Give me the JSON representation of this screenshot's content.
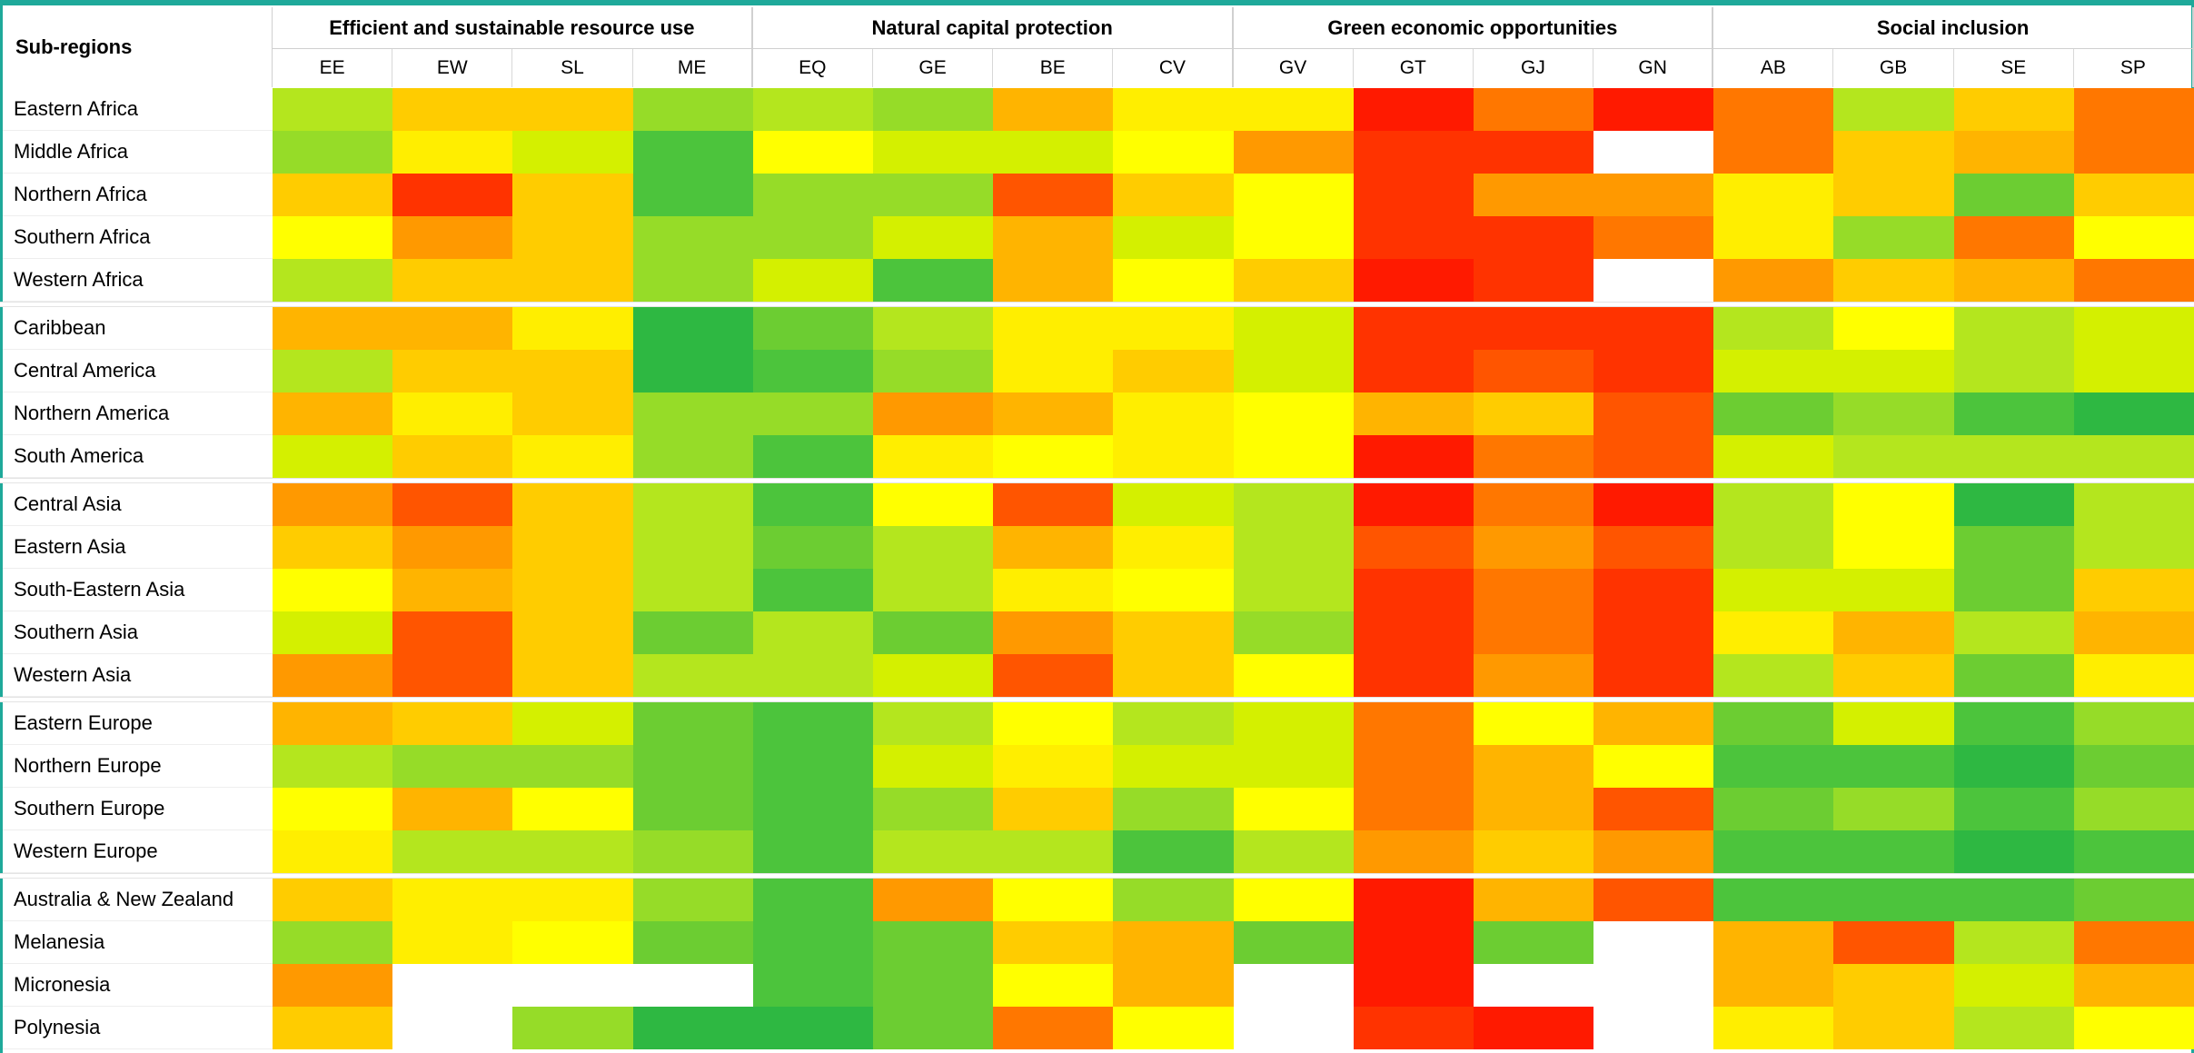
{
  "header": {
    "first": "Sub-regions",
    "groups": [
      {
        "label": "Efficient and sustainable resource use",
        "codes": [
          "EE",
          "EW",
          "SL",
          "ME"
        ]
      },
      {
        "label": "Natural capital protection",
        "codes": [
          "EQ",
          "GE",
          "BE",
          "CV"
        ]
      },
      {
        "label": "Green economic opportunities",
        "codes": [
          "GV",
          "GT",
          "GJ",
          "GN"
        ]
      },
      {
        "label": "Social inclusion",
        "codes": [
          "AB",
          "GB",
          "SE",
          "SP"
        ]
      }
    ]
  },
  "groups_rows": [
    5,
    4,
    5,
    4,
    4
  ],
  "rows": [
    {
      "label": "Eastern Africa",
      "colors": [
        "#b4e61e",
        "#ffcc00",
        "#ffcc00",
        "#96dc28",
        "#b4e61e",
        "#96dc28",
        "#ffb400",
        "#ffee00",
        "#ffee00",
        "#ff1a00",
        "#ff7700",
        "#ff1a00",
        "#ff7700",
        "#b4e61e",
        "#ffcc00",
        "#ff7700"
      ]
    },
    {
      "label": "Middle Africa",
      "colors": [
        "#96dc28",
        "#ffee00",
        "#d4f000",
        "#4cc43c",
        "#ffff00",
        "#d4f000",
        "#d4f000",
        "#ffff00",
        "#ff9900",
        "#ff3300",
        "#ff3300",
        "#ffffff",
        "#ff7700",
        "#ffcc00",
        "#ffb400",
        "#ff7700"
      ]
    },
    {
      "label": "Northern Africa",
      "colors": [
        "#ffcc00",
        "#ff3300",
        "#ffcc00",
        "#4cc43c",
        "#96dc28",
        "#96dc28",
        "#ff5500",
        "#ffcc00",
        "#ffff00",
        "#ff3300",
        "#ff9900",
        "#ff9900",
        "#ffee00",
        "#ffcc00",
        "#6ccd32",
        "#ffcc00"
      ]
    },
    {
      "label": "Southern Africa",
      "colors": [
        "#ffff00",
        "#ff9900",
        "#ffcc00",
        "#96dc28",
        "#96dc28",
        "#d4f000",
        "#ffb400",
        "#d4f000",
        "#ffff00",
        "#ff3300",
        "#ff3300",
        "#ff7700",
        "#ffee00",
        "#96dc28",
        "#ff7700",
        "#ffff00"
      ]
    },
    {
      "label": "Western Africa",
      "colors": [
        "#b4e61e",
        "#ffcc00",
        "#ffcc00",
        "#96dc28",
        "#d4f000",
        "#4cc43c",
        "#ffb400",
        "#ffff00",
        "#ffcc00",
        "#ff1a00",
        "#ff3300",
        "#ffffff",
        "#ff9900",
        "#ffcc00",
        "#ffb400",
        "#ff7700"
      ]
    },
    {
      "label": "Caribbean",
      "colors": [
        "#ffb400",
        "#ffb400",
        "#ffee00",
        "#2eb842",
        "#6ccd32",
        "#b4e61e",
        "#ffee00",
        "#ffee00",
        "#d4f000",
        "#ff3300",
        "#ff3300",
        "#ff3300",
        "#b4e61e",
        "#ffff00",
        "#b4e61e",
        "#d4f000"
      ]
    },
    {
      "label": "Central America",
      "colors": [
        "#b4e61e",
        "#ffcc00",
        "#ffcc00",
        "#2eb842",
        "#4cc43c",
        "#96dc28",
        "#ffee00",
        "#ffcc00",
        "#d4f000",
        "#ff3300",
        "#ff5500",
        "#ff3300",
        "#d4f000",
        "#d4f000",
        "#b4e61e",
        "#d4f000"
      ]
    },
    {
      "label": "Northern America",
      "colors": [
        "#ffb400",
        "#ffee00",
        "#ffcc00",
        "#96dc28",
        "#96dc28",
        "#ff9900",
        "#ffb400",
        "#ffee00",
        "#ffff00",
        "#ffb400",
        "#ffcc00",
        "#ff5500",
        "#6ccd32",
        "#96dc28",
        "#4cc43c",
        "#2eb842"
      ]
    },
    {
      "label": "South America",
      "colors": [
        "#d4f000",
        "#ffcc00",
        "#ffee00",
        "#96dc28",
        "#4cc43c",
        "#ffee00",
        "#ffff00",
        "#ffee00",
        "#ffff00",
        "#ff1a00",
        "#ff7700",
        "#ff5500",
        "#d4f000",
        "#b4e61e",
        "#b4e61e",
        "#b4e61e"
      ]
    },
    {
      "label": "Central Asia",
      "colors": [
        "#ff9900",
        "#ff5500",
        "#ffcc00",
        "#b4e61e",
        "#4cc43c",
        "#ffff00",
        "#ff5500",
        "#d4f000",
        "#b4e61e",
        "#ff1a00",
        "#ff7700",
        "#ff1a00",
        "#b4e61e",
        "#ffff00",
        "#2eb842",
        "#b4e61e"
      ]
    },
    {
      "label": "Eastern Asia",
      "colors": [
        "#ffcc00",
        "#ff9900",
        "#ffcc00",
        "#b4e61e",
        "#6ccd32",
        "#b4e61e",
        "#ffb400",
        "#ffee00",
        "#b4e61e",
        "#ff5500",
        "#ff9900",
        "#ff5500",
        "#b4e61e",
        "#ffff00",
        "#6ccd32",
        "#b4e61e"
      ]
    },
    {
      "label": "South-Eastern Asia",
      "colors": [
        "#ffff00",
        "#ffb400",
        "#ffcc00",
        "#b4e61e",
        "#4cc43c",
        "#b4e61e",
        "#ffee00",
        "#ffff00",
        "#b4e61e",
        "#ff3300",
        "#ff7700",
        "#ff3300",
        "#d4f000",
        "#d4f000",
        "#6ccd32",
        "#ffcc00"
      ]
    },
    {
      "label": "Southern Asia",
      "colors": [
        "#d4f000",
        "#ff5500",
        "#ffcc00",
        "#6ccd32",
        "#b4e61e",
        "#6ccd32",
        "#ff9900",
        "#ffcc00",
        "#96dc28",
        "#ff3300",
        "#ff7700",
        "#ff3300",
        "#ffee00",
        "#ffb400",
        "#b4e61e",
        "#ffb400"
      ]
    },
    {
      "label": "Western Asia",
      "colors": [
        "#ff9900",
        "#ff5500",
        "#ffcc00",
        "#b4e61e",
        "#b4e61e",
        "#d4f000",
        "#ff5500",
        "#ffcc00",
        "#ffff00",
        "#ff3300",
        "#ff9900",
        "#ff3300",
        "#b4e61e",
        "#ffcc00",
        "#6ccd32",
        "#ffee00"
      ]
    },
    {
      "label": "Eastern Europe",
      "colors": [
        "#ffb400",
        "#ffcc00",
        "#d4f000",
        "#6ccd32",
        "#4cc43c",
        "#b4e61e",
        "#ffff00",
        "#b4e61e",
        "#d4f000",
        "#ff7700",
        "#ffff00",
        "#ffb400",
        "#6ccd32",
        "#d4f000",
        "#4cc43c",
        "#96dc28"
      ]
    },
    {
      "label": "Northern Europe",
      "colors": [
        "#b4e61e",
        "#96dc28",
        "#96dc28",
        "#6ccd32",
        "#4cc43c",
        "#d4f000",
        "#ffee00",
        "#d4f000",
        "#d4f000",
        "#ff7700",
        "#ffb400",
        "#ffff00",
        "#4cc43c",
        "#4cc43c",
        "#2eb842",
        "#6ccd32"
      ]
    },
    {
      "label": "Southern Europe",
      "colors": [
        "#ffff00",
        "#ffb400",
        "#ffff00",
        "#6ccd32",
        "#4cc43c",
        "#96dc28",
        "#ffcc00",
        "#96dc28",
        "#ffff00",
        "#ff7700",
        "#ffb400",
        "#ff5500",
        "#6ccd32",
        "#96dc28",
        "#4cc43c",
        "#96dc28"
      ]
    },
    {
      "label": "Western Europe",
      "colors": [
        "#ffee00",
        "#b4e61e",
        "#b4e61e",
        "#96dc28",
        "#4cc43c",
        "#b4e61e",
        "#b4e61e",
        "#4cc43c",
        "#b4e61e",
        "#ff9900",
        "#ffcc00",
        "#ff9900",
        "#4cc43c",
        "#4cc43c",
        "#2eb842",
        "#4cc43c"
      ]
    },
    {
      "label": "Australia & New Zealand",
      "colors": [
        "#ffcc00",
        "#ffee00",
        "#ffee00",
        "#96dc28",
        "#4cc43c",
        "#ff9900",
        "#ffff00",
        "#96dc28",
        "#ffff00",
        "#ff1a00",
        "#ffb400",
        "#ff5500",
        "#4cc43c",
        "#4cc43c",
        "#4cc43c",
        "#6ccd32"
      ]
    },
    {
      "label": "Melanesia",
      "colors": [
        "#96dc28",
        "#ffee00",
        "#ffff00",
        "#6ccd32",
        "#4cc43c",
        "#6ccd32",
        "#ffcc00",
        "#ffb400",
        "#6ccd32",
        "#ff1a00",
        "#6ccd32",
        "#ffffff",
        "#ffb400",
        "#ff5500",
        "#b4e61e",
        "#ff7700"
      ]
    },
    {
      "label": "Micronesia",
      "colors": [
        "#ff9900",
        "#ffffff",
        "#ffffff",
        "#ffffff",
        "#4cc43c",
        "#6ccd32",
        "#ffff00",
        "#ffb400",
        "#ffffff",
        "#ff1a00",
        "#ffffff",
        "#ffffff",
        "#ffb400",
        "#ffcc00",
        "#d4f000",
        "#ffb400"
      ]
    },
    {
      "label": "Polynesia",
      "colors": [
        "#ffcc00",
        "#ffffff",
        "#96dc28",
        "#2eb842",
        "#2eb842",
        "#6ccd32",
        "#ff7700",
        "#ffff00",
        "#ffffff",
        "#ff3300",
        "#ff1a00",
        "#ffffff",
        "#ffee00",
        "#ffcc00",
        "#b4e61e",
        "#ffff00"
      ]
    }
  ]
}
